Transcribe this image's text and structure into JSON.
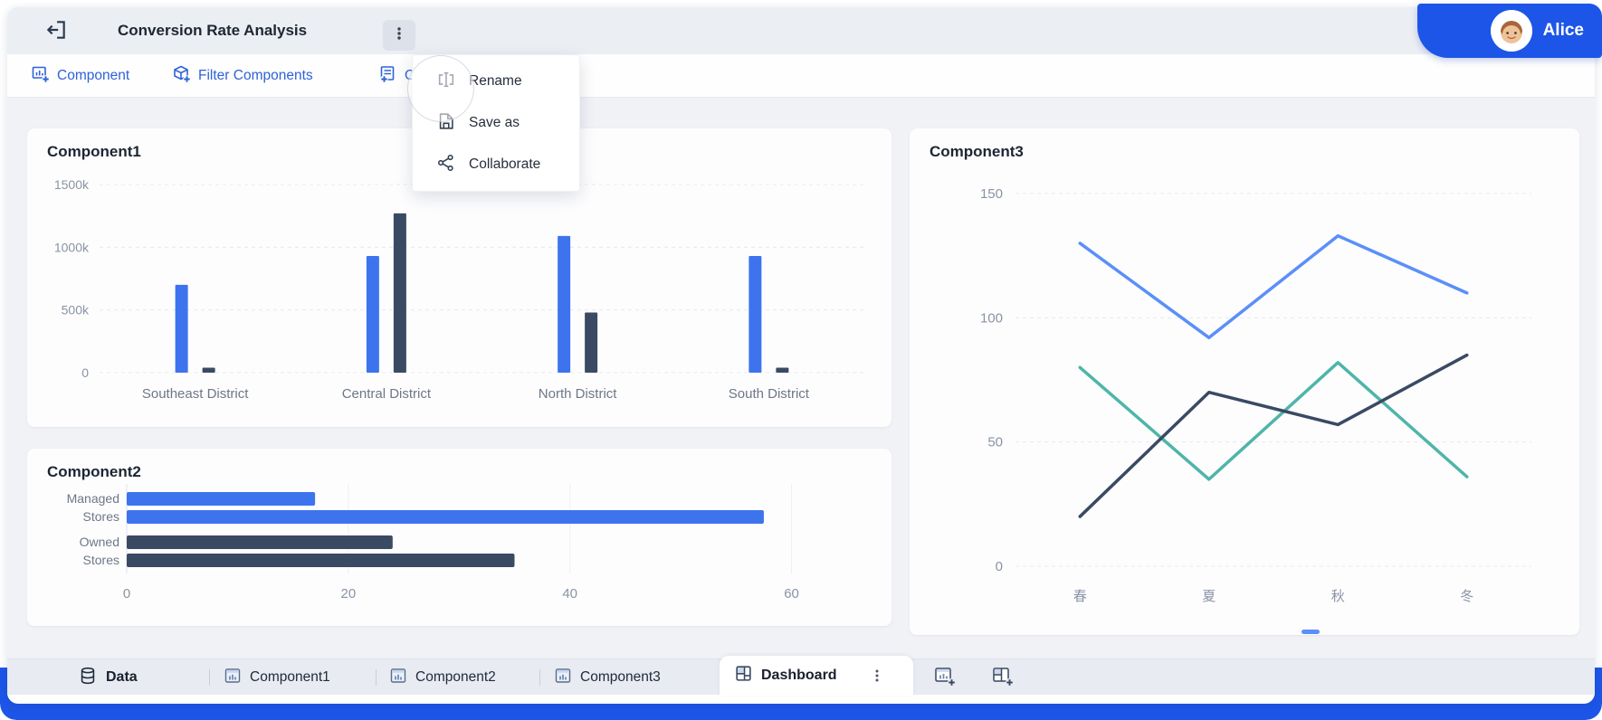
{
  "window": {
    "title": "Conversion Rate Analysis"
  },
  "user": {
    "name": "Alice"
  },
  "toolbar": {
    "items": [
      {
        "label": "Component",
        "icon": "add-component-icon"
      },
      {
        "label": "Filter Components",
        "icon": "filter-components-icon"
      },
      {
        "label": "Ot",
        "icon": "other-icon",
        "note": "truncated by open menu"
      }
    ]
  },
  "context_menu": {
    "items": [
      {
        "label": "Rename",
        "icon": "rename-icon"
      },
      {
        "label": "Save as",
        "icon": "save-as-icon"
      },
      {
        "label": "Collaborate",
        "icon": "collaborate-icon"
      }
    ]
  },
  "tabbar": {
    "tabs": [
      {
        "label": "Data",
        "icon": "database-icon",
        "active": false
      },
      {
        "label": "Component1",
        "icon": "chart-icon",
        "active": false
      },
      {
        "label": "Component2",
        "icon": "chart-icon",
        "active": false
      },
      {
        "label": "Component3",
        "icon": "chart-icon",
        "active": false
      },
      {
        "label": "Dashboard",
        "icon": "dashboard-icon",
        "active": true
      }
    ]
  },
  "colors": {
    "accent_blue": "#1D55E8",
    "bar_blue": "#3D74EE",
    "navy": "#3A4A63",
    "line_blue": "#5B8FF9",
    "teal": "#4EB5A9",
    "grid": "#e7eaef",
    "tick_text": "#8a93a4",
    "category_text": "#6e7787"
  },
  "chart_data": [
    {
      "id": "component1",
      "type": "bar",
      "title": "Component1",
      "categories": [
        "Southeast District",
        "Central District",
        "North District",
        "South District"
      ],
      "series": [
        {
          "name": "blue-series",
          "color": "#3D74EE",
          "values": [
            700,
            930,
            1090,
            930
          ]
        },
        {
          "name": "navy-series",
          "color": "#3A4A63",
          "values": [
            40,
            1270,
            480,
            40
          ]
        }
      ],
      "ylim": [
        0,
        1500
      ],
      "unit": "k",
      "grid": "dashed-horizontal",
      "y_ticks": [
        {
          "v": 0,
          "label": "0"
        },
        {
          "v": 500,
          "label": "500k"
        },
        {
          "v": 1000,
          "label": "1000k"
        },
        {
          "v": 1500,
          "label": "1500k"
        }
      ]
    },
    {
      "id": "component2",
      "type": "horizontal-bar",
      "title": "Component2",
      "groups": [
        {
          "label": [
            "Managed",
            "Stores"
          ],
          "color": "#3D74EE",
          "values": [
            17,
            57.5
          ]
        },
        {
          "label": [
            "Owned",
            "Stores"
          ],
          "color": "#3A4A63",
          "values": [
            24,
            35
          ]
        }
      ],
      "xlim": [
        0,
        66
      ],
      "grid": "vertical",
      "x_ticks": [
        {
          "v": 0,
          "label": "0"
        },
        {
          "v": 20,
          "label": "20"
        },
        {
          "v": 40,
          "label": "40"
        },
        {
          "v": 60,
          "label": "60"
        }
      ]
    },
    {
      "id": "component3",
      "type": "line",
      "title": "Component3",
      "categories": [
        "春",
        "夏",
        "秋",
        "冬"
      ],
      "series": [
        {
          "name": "light-blue-series",
          "color": "#5B8FF9",
          "values": [
            130,
            92,
            133,
            110
          ]
        },
        {
          "name": "teal-series",
          "color": "#4EB5A9",
          "values": [
            80,
            35,
            82,
            36
          ]
        },
        {
          "name": "navy-series",
          "color": "#3A4A63",
          "values": [
            20,
            70,
            57,
            85
          ]
        }
      ],
      "ylim": [
        0,
        150
      ],
      "grid": "dashed-horizontal",
      "y_ticks": [
        {
          "v": 0,
          "label": "0"
        },
        {
          "v": 50,
          "label": "50"
        },
        {
          "v": 100,
          "label": "100"
        },
        {
          "v": 150,
          "label": "150"
        }
      ]
    }
  ]
}
